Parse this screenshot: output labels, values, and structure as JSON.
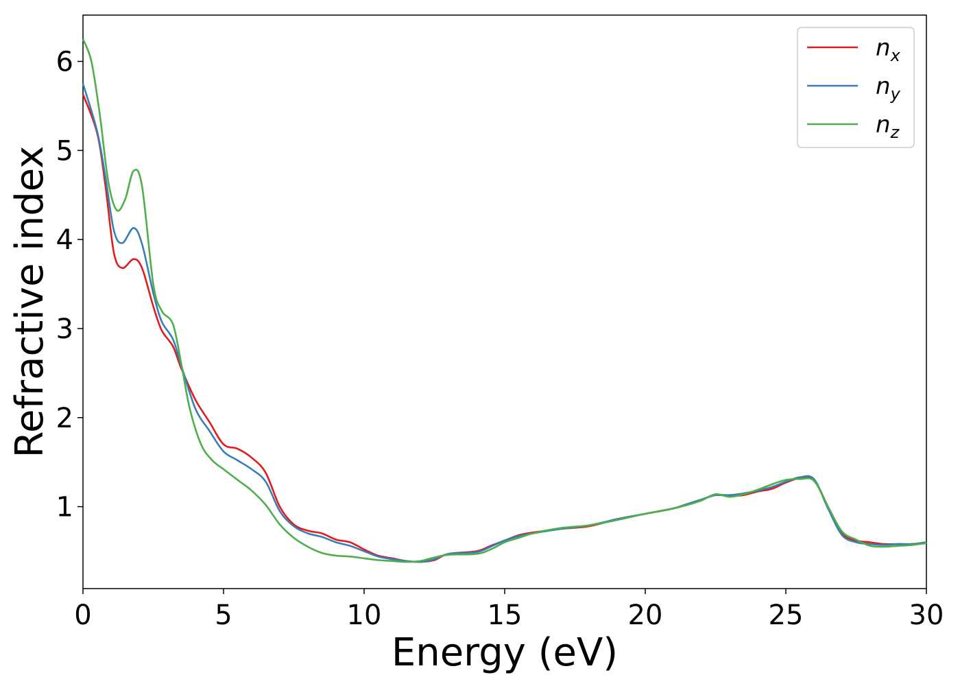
{
  "chart_data": {
    "type": "line",
    "title": "",
    "xlabel": "Energy (eV)",
    "ylabel": "Refractive index",
    "xlim": [
      0,
      30
    ],
    "ylim": [
      0.08,
      6.52
    ],
    "xticks": [
      0,
      5,
      10,
      15,
      20,
      25,
      30
    ],
    "yticks": [
      1,
      2,
      3,
      4,
      5,
      6
    ],
    "grid": false,
    "legend_position": "top-right",
    "series": [
      {
        "name": "nx",
        "label_base": "n",
        "label_sub": "x",
        "color": "#e41a1c",
        "points": [
          [
            0,
            5.63
          ],
          [
            0.5,
            5.2
          ],
          [
            0.8,
            4.6
          ],
          [
            1.1,
            3.85
          ],
          [
            1.4,
            3.68
          ],
          [
            1.8,
            3.78
          ],
          [
            2.1,
            3.68
          ],
          [
            2.5,
            3.25
          ],
          [
            2.8,
            2.98
          ],
          [
            3.2,
            2.8
          ],
          [
            3.5,
            2.55
          ],
          [
            4.0,
            2.2
          ],
          [
            4.5,
            1.95
          ],
          [
            5.0,
            1.7
          ],
          [
            5.5,
            1.65
          ],
          [
            6.0,
            1.55
          ],
          [
            6.5,
            1.38
          ],
          [
            7.0,
            1.0
          ],
          [
            7.5,
            0.8
          ],
          [
            8.0,
            0.73
          ],
          [
            8.5,
            0.7
          ],
          [
            9.0,
            0.63
          ],
          [
            9.5,
            0.6
          ],
          [
            10,
            0.52
          ],
          [
            10.5,
            0.45
          ],
          [
            11,
            0.42
          ],
          [
            11.5,
            0.39
          ],
          [
            12,
            0.38
          ],
          [
            12.5,
            0.4
          ],
          [
            13,
            0.47
          ],
          [
            14,
            0.5
          ],
          [
            14.5,
            0.56
          ],
          [
            15,
            0.62
          ],
          [
            15.5,
            0.68
          ],
          [
            16,
            0.71
          ],
          [
            17,
            0.75
          ],
          [
            18,
            0.78
          ],
          [
            19,
            0.86
          ],
          [
            20,
            0.92
          ],
          [
            21,
            0.98
          ],
          [
            21.5,
            1.03
          ],
          [
            22,
            1.08
          ],
          [
            22.5,
            1.13
          ],
          [
            23,
            1.12
          ],
          [
            23.5,
            1.13
          ],
          [
            24,
            1.17
          ],
          [
            24.5,
            1.2
          ],
          [
            25,
            1.27
          ],
          [
            25.5,
            1.32
          ],
          [
            26,
            1.3
          ],
          [
            26.5,
            1.0
          ],
          [
            27,
            0.7
          ],
          [
            27.5,
            0.62
          ],
          [
            28,
            0.6
          ],
          [
            28.5,
            0.58
          ],
          [
            29,
            0.58
          ],
          [
            29.5,
            0.58
          ],
          [
            30,
            0.6
          ]
        ]
      },
      {
        "name": "ny",
        "label_base": "n",
        "label_sub": "y",
        "color": "#377eb8",
        "points": [
          [
            0,
            5.75
          ],
          [
            0.5,
            5.22
          ],
          [
            0.8,
            4.7
          ],
          [
            1.1,
            4.1
          ],
          [
            1.4,
            3.96
          ],
          [
            1.8,
            4.13
          ],
          [
            2.1,
            3.95
          ],
          [
            2.5,
            3.4
          ],
          [
            2.8,
            3.08
          ],
          [
            3.2,
            2.88
          ],
          [
            3.5,
            2.58
          ],
          [
            4.0,
            2.1
          ],
          [
            4.5,
            1.85
          ],
          [
            5.0,
            1.62
          ],
          [
            5.5,
            1.52
          ],
          [
            6.0,
            1.42
          ],
          [
            6.5,
            1.28
          ],
          [
            7.0,
            0.95
          ],
          [
            7.5,
            0.78
          ],
          [
            8.0,
            0.7
          ],
          [
            8.5,
            0.66
          ],
          [
            9.0,
            0.6
          ],
          [
            9.5,
            0.56
          ],
          [
            10,
            0.5
          ],
          [
            10.5,
            0.44
          ],
          [
            11,
            0.41
          ],
          [
            11.5,
            0.39
          ],
          [
            12,
            0.38
          ],
          [
            12.5,
            0.41
          ],
          [
            13,
            0.47
          ],
          [
            14,
            0.49
          ],
          [
            14.5,
            0.55
          ],
          [
            15,
            0.62
          ],
          [
            15.5,
            0.67
          ],
          [
            16,
            0.7
          ],
          [
            17,
            0.75
          ],
          [
            18,
            0.79
          ],
          [
            19,
            0.86
          ],
          [
            20,
            0.92
          ],
          [
            21,
            0.98
          ],
          [
            21.5,
            1.03
          ],
          [
            22,
            1.08
          ],
          [
            22.5,
            1.13
          ],
          [
            23,
            1.13
          ],
          [
            23.5,
            1.15
          ],
          [
            24,
            1.18
          ],
          [
            24.5,
            1.22
          ],
          [
            25,
            1.28
          ],
          [
            25.5,
            1.33
          ],
          [
            26,
            1.31
          ],
          [
            26.5,
            0.98
          ],
          [
            27,
            0.68
          ],
          [
            27.5,
            0.6
          ],
          [
            28,
            0.58
          ],
          [
            28.5,
            0.57
          ],
          [
            29,
            0.58
          ],
          [
            29.5,
            0.58
          ],
          [
            30,
            0.6
          ]
        ]
      },
      {
        "name": "nz",
        "label_base": "n",
        "label_sub": "z",
        "color": "#4daf4a",
        "points": [
          [
            0,
            6.25
          ],
          [
            0.3,
            6.0
          ],
          [
            0.6,
            5.4
          ],
          [
            0.9,
            4.65
          ],
          [
            1.2,
            4.33
          ],
          [
            1.5,
            4.45
          ],
          [
            1.8,
            4.77
          ],
          [
            2.1,
            4.6
          ],
          [
            2.5,
            3.5
          ],
          [
            2.8,
            3.2
          ],
          [
            3.2,
            3.05
          ],
          [
            3.5,
            2.6
          ],
          [
            3.8,
            2.1
          ],
          [
            4.2,
            1.7
          ],
          [
            4.6,
            1.52
          ],
          [
            5.0,
            1.42
          ],
          [
            5.5,
            1.3
          ],
          [
            6.0,
            1.18
          ],
          [
            6.5,
            1.02
          ],
          [
            7.0,
            0.8
          ],
          [
            7.5,
            0.65
          ],
          [
            8.0,
            0.55
          ],
          [
            8.5,
            0.48
          ],
          [
            9.0,
            0.45
          ],
          [
            9.5,
            0.44
          ],
          [
            10,
            0.42
          ],
          [
            10.5,
            0.4
          ],
          [
            11,
            0.39
          ],
          [
            11.5,
            0.38
          ],
          [
            12,
            0.39
          ],
          [
            12.5,
            0.43
          ],
          [
            13,
            0.46
          ],
          [
            14,
            0.47
          ],
          [
            14.5,
            0.52
          ],
          [
            15,
            0.6
          ],
          [
            15.5,
            0.65
          ],
          [
            16,
            0.7
          ],
          [
            17,
            0.76
          ],
          [
            18,
            0.79
          ],
          [
            19,
            0.85
          ],
          [
            20,
            0.92
          ],
          [
            21,
            0.98
          ],
          [
            21.5,
            1.02
          ],
          [
            22,
            1.07
          ],
          [
            22.5,
            1.14
          ],
          [
            23,
            1.11
          ],
          [
            23.5,
            1.14
          ],
          [
            24,
            1.19
          ],
          [
            24.5,
            1.25
          ],
          [
            25,
            1.3
          ],
          [
            25.5,
            1.31
          ],
          [
            26,
            1.29
          ],
          [
            26.5,
            1.0
          ],
          [
            27,
            0.72
          ],
          [
            27.5,
            0.63
          ],
          [
            28,
            0.56
          ],
          [
            28.5,
            0.55
          ],
          [
            29,
            0.56
          ],
          [
            29.5,
            0.57
          ],
          [
            30,
            0.59
          ]
        ]
      }
    ]
  }
}
